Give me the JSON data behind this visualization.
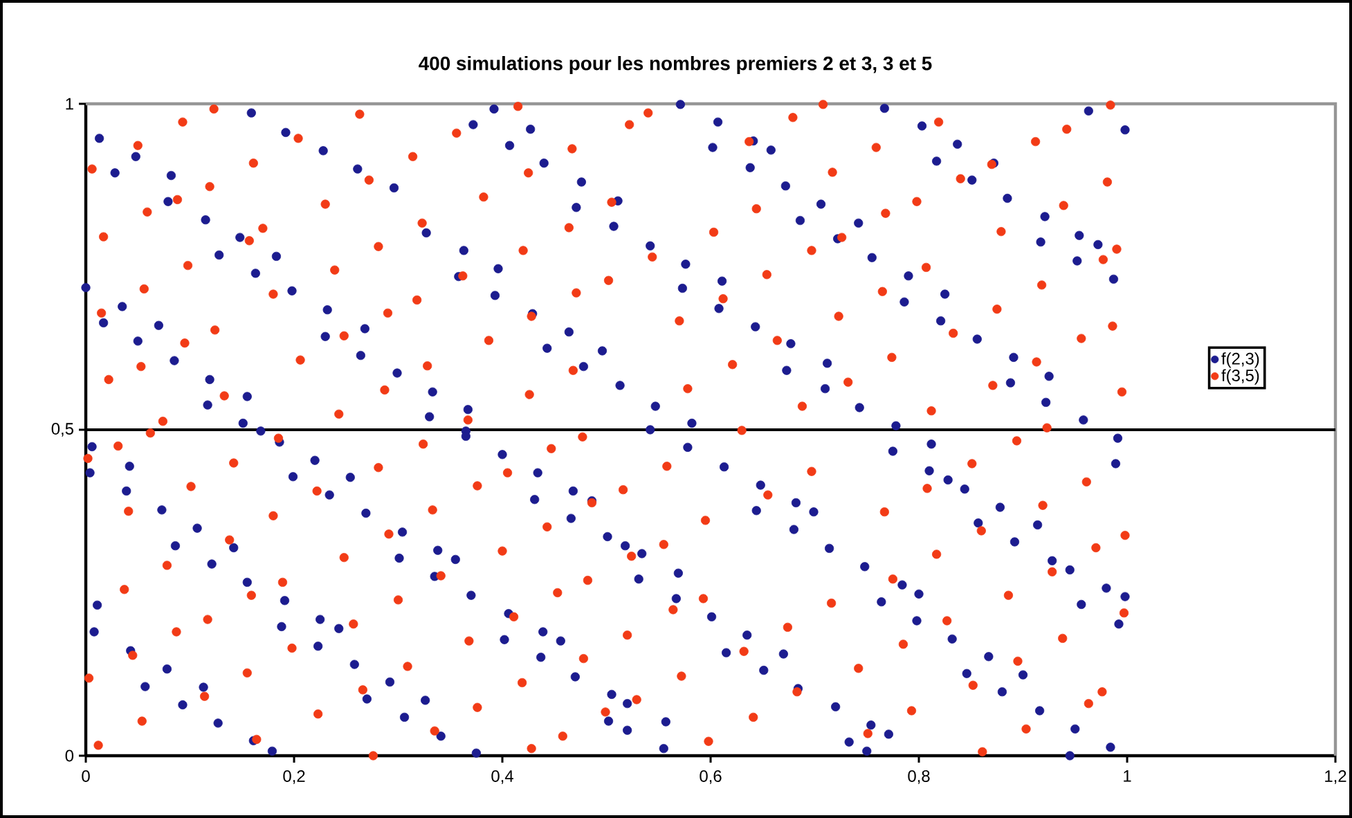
{
  "chart_data": {
    "type": "scatter",
    "title": "400 simulations pour les nombres premiers 2 et 3, 3 et 5",
    "xlim": [
      0,
      1.2
    ],
    "ylim": [
      0,
      1
    ],
    "xticks": [
      0,
      {
        "value": 0.2,
        "label": "0,2"
      },
      {
        "value": 0.4,
        "label": "0,4"
      },
      {
        "value": 0.6,
        "label": "0,6"
      },
      {
        "value": 0.8,
        "label": "0,8"
      },
      1,
      {
        "value": 1.2,
        "label": "1,2"
      }
    ],
    "yticks": [
      0,
      {
        "value": 0.5,
        "label": "0,5"
      },
      1
    ],
    "grid": false,
    "legend": "right",
    "marker": "circle",
    "ref_lines": [
      {
        "axis": "y",
        "value": 0.5,
        "color": "#000000"
      }
    ],
    "series": [
      {
        "name": "f(2,3)",
        "color": "#1c1c8f",
        "x": [
          0.013,
          0.048,
          0.082,
          0.028,
          0.079,
          0.115,
          0.148,
          0.183,
          0.159,
          0.192,
          0.228,
          0.261,
          0.296,
          0.0,
          0.035,
          0.07,
          0.017,
          0.05,
          0.085,
          0.119,
          0.155,
          0.128,
          0.163,
          0.198,
          0.232,
          0.268,
          0.23,
          0.264,
          0.299,
          0.333,
          0.367,
          0.117,
          0.151,
          0.168,
          0.33,
          0.365,
          0.327,
          0.363,
          0.396,
          0.372,
          0.407,
          0.44,
          0.476,
          0.511,
          0.392,
          0.427,
          0.358,
          0.393,
          0.429,
          0.464,
          0.496,
          0.513,
          0.443,
          0.478,
          0.471,
          0.507,
          0.571,
          0.607,
          0.641,
          0.658,
          0.602,
          0.638,
          0.672,
          0.706,
          0.742,
          0.542,
          0.576,
          0.611,
          0.573,
          0.608,
          0.643,
          0.677,
          0.712,
          0.686,
          0.722,
          0.755,
          0.79,
          0.825,
          0.786,
          0.821,
          0.856,
          0.891,
          0.925,
          0.673,
          0.71,
          0.743,
          0.778,
          0.547,
          0.582,
          0.767,
          0.803,
          0.837,
          0.872,
          0.817,
          0.851,
          0.885,
          0.921,
          0.954,
          0.972,
          0.917,
          0.952,
          0.987,
          0.888,
          0.922,
          0.958,
          0.963,
          0.998,
          0.006,
          0.042,
          0.004,
          0.039,
          0.073,
          0.107,
          0.142,
          0.086,
          0.121,
          0.155,
          0.191,
          0.225,
          0.243,
          0.186,
          0.22,
          0.254,
          0.199,
          0.234,
          0.269,
          0.304,
          0.338,
          0.355,
          0.011,
          0.008,
          0.043,
          0.078,
          0.113,
          0.057,
          0.093,
          0.127,
          0.161,
          0.179,
          0.188,
          0.223,
          0.258,
          0.292,
          0.326,
          0.27,
          0.306,
          0.341,
          0.375,
          0.301,
          0.335,
          0.37,
          0.406,
          0.439,
          0.456,
          0.402,
          0.437,
          0.47,
          0.505,
          0.365,
          0.4,
          0.434,
          0.468,
          0.486,
          0.431,
          0.466,
          0.501,
          0.518,
          0.502,
          0.542,
          0.578,
          0.613,
          0.648,
          0.682,
          0.699,
          0.534,
          0.569,
          0.531,
          0.567,
          0.601,
          0.635,
          0.67,
          0.644,
          0.68,
          0.714,
          0.748,
          0.784,
          0.8,
          0.775,
          0.81,
          0.828,
          0.812,
          0.764,
          0.798,
          0.832,
          0.867,
          0.9,
          0.846,
          0.88,
          0.916,
          0.95,
          0.984,
          0.52,
          0.557,
          0.52,
          0.555,
          0.615,
          0.651,
          0.684,
          0.72,
          0.754,
          0.771,
          0.733,
          0.75,
          0.844,
          0.878,
          0.914,
          0.857,
          0.892,
          0.928,
          0.945,
          0.98,
          0.998,
          0.956,
          0.992,
          0.945,
          0.991,
          0.989
        ],
        "values": [
          0.947,
          0.919,
          0.89,
          0.894,
          0.85,
          0.822,
          0.795,
          0.766,
          0.986,
          0.956,
          0.928,
          0.9,
          0.871,
          0.718,
          0.689,
          0.66,
          0.664,
          0.636,
          0.606,
          0.577,
          0.551,
          0.768,
          0.74,
          0.713,
          0.684,
          0.655,
          0.643,
          0.614,
          0.587,
          0.558,
          0.531,
          0.538,
          0.51,
          0.498,
          0.52,
          0.498,
          0.802,
          0.775,
          0.747,
          0.968,
          0.936,
          0.909,
          0.88,
          0.851,
          0.992,
          0.961,
          0.735,
          0.706,
          0.678,
          0.65,
          0.621,
          0.568,
          0.625,
          0.597,
          0.841,
          0.812,
          0.999,
          0.972,
          0.943,
          0.929,
          0.933,
          0.902,
          0.874,
          0.846,
          0.817,
          0.782,
          0.754,
          0.728,
          0.717,
          0.686,
          0.658,
          0.632,
          0.602,
          0.821,
          0.793,
          0.764,
          0.736,
          0.708,
          0.696,
          0.667,
          0.639,
          0.611,
          0.582,
          0.591,
          0.563,
          0.534,
          0.506,
          0.536,
          0.51,
          0.993,
          0.966,
          0.938,
          0.909,
          0.912,
          0.883,
          0.855,
          0.827,
          0.798,
          0.784,
          0.788,
          0.759,
          0.731,
          0.572,
          0.542,
          0.515,
          0.989,
          0.96,
          0.474,
          0.444,
          0.434,
          0.406,
          0.377,
          0.349,
          0.319,
          0.322,
          0.294,
          0.266,
          0.238,
          0.209,
          0.195,
          0.481,
          0.453,
          0.427,
          0.428,
          0.4,
          0.372,
          0.343,
          0.315,
          0.301,
          0.231,
          0.19,
          0.161,
          0.133,
          0.105,
          0.106,
          0.078,
          0.05,
          0.023,
          0.007,
          0.198,
          0.168,
          0.14,
          0.113,
          0.085,
          0.087,
          0.059,
          0.03,
          0.004,
          0.303,
          0.275,
          0.246,
          0.218,
          0.19,
          0.176,
          0.178,
          0.151,
          0.121,
          0.094,
          0.49,
          0.462,
          0.434,
          0.406,
          0.391,
          0.393,
          0.364,
          0.336,
          0.322,
          0.053,
          0.5,
          0.473,
          0.443,
          0.415,
          0.388,
          0.374,
          0.31,
          0.28,
          0.271,
          0.241,
          0.213,
          0.185,
          0.156,
          0.376,
          0.347,
          0.318,
          0.29,
          0.262,
          0.248,
          0.467,
          0.437,
          0.423,
          0.478,
          0.236,
          0.207,
          0.179,
          0.152,
          0.124,
          0.126,
          0.098,
          0.069,
          0.041,
          0.013,
          0.08,
          0.052,
          0.039,
          0.011,
          0.158,
          0.131,
          0.103,
          0.075,
          0.047,
          0.033,
          0.021,
          0.007,
          0.409,
          0.381,
          0.354,
          0.357,
          0.328,
          0.299,
          0.285,
          0.257,
          0.244,
          0.232,
          0.202,
          0.0,
          0.487,
          0.448
        ]
      },
      {
        "name": "f(3,5)",
        "color": "#f23b16",
        "x": [
          0.006,
          0.05,
          0.093,
          0.123,
          0.017,
          0.059,
          0.088,
          0.015,
          0.022,
          0.053,
          0.095,
          0.124,
          0.056,
          0.098,
          0.157,
          0.17,
          0.119,
          0.161,
          0.204,
          0.263,
          0.074,
          0.133,
          0.18,
          0.239,
          0.281,
          0.206,
          0.248,
          0.29,
          0.318,
          0.23,
          0.272,
          0.314,
          0.356,
          0.415,
          0.243,
          0.287,
          0.328,
          0.387,
          0.428,
          0.471,
          0.502,
          0.323,
          0.382,
          0.425,
          0.467,
          0.522,
          0.362,
          0.42,
          0.464,
          0.505,
          0.367,
          0.426,
          0.468,
          0.54,
          0.544,
          0.603,
          0.644,
          0.57,
          0.612,
          0.654,
          0.697,
          0.726,
          0.578,
          0.621,
          0.664,
          0.723,
          0.765,
          0.807,
          0.688,
          0.732,
          0.774,
          0.833,
          0.875,
          0.637,
          0.679,
          0.708,
          0.717,
          0.759,
          0.819,
          0.768,
          0.798,
          0.84,
          0.87,
          0.879,
          0.939,
          0.981,
          0.912,
          0.942,
          0.984,
          0.812,
          0.871,
          0.913,
          0.918,
          0.977,
          0.99,
          0.956,
          0.986,
          0.995,
          0.002,
          0.031,
          0.062,
          0.041,
          0.101,
          0.142,
          0.185,
          0.003,
          0.045,
          0.087,
          0.117,
          0.159,
          0.189,
          0.037,
          0.078,
          0.138,
          0.18,
          0.222,
          0.281,
          0.324,
          0.012,
          0.054,
          0.114,
          0.155,
          0.198,
          0.257,
          0.3,
          0.164,
          0.223,
          0.266,
          0.309,
          0.368,
          0.411,
          0.453,
          0.482,
          0.248,
          0.291,
          0.333,
          0.376,
          0.405,
          0.447,
          0.477,
          0.276,
          0.335,
          0.376,
          0.419,
          0.478,
          0.341,
          0.4,
          0.443,
          0.486,
          0.428,
          0.458,
          0.499,
          0.516,
          0.558,
          0.524,
          0.555,
          0.52,
          0.564,
          0.593,
          0.595,
          0.655,
          0.697,
          0.572,
          0.632,
          0.674,
          0.716,
          0.775,
          0.817,
          0.529,
          0.598,
          0.641,
          0.683,
          0.742,
          0.785,
          0.827,
          0.886,
          0.928,
          0.97,
          0.998,
          0.63,
          0.767,
          0.808,
          0.851,
          0.894,
          0.923,
          0.751,
          0.793,
          0.852,
          0.895,
          0.938,
          0.997,
          0.861,
          0.903,
          0.963,
          0.976,
          0.86,
          0.919,
          0.961
        ],
        "values": [
          0.9,
          0.936,
          0.972,
          0.992,
          0.796,
          0.834,
          0.853,
          0.679,
          0.577,
          0.597,
          0.633,
          0.653,
          0.716,
          0.752,
          0.79,
          0.809,
          0.873,
          0.909,
          0.947,
          0.984,
          0.513,
          0.552,
          0.708,
          0.745,
          0.781,
          0.607,
          0.644,
          0.679,
          0.699,
          0.846,
          0.883,
          0.919,
          0.955,
          0.996,
          0.524,
          0.561,
          0.598,
          0.637,
          0.674,
          0.71,
          0.729,
          0.817,
          0.857,
          0.894,
          0.931,
          0.968,
          0.736,
          0.775,
          0.81,
          0.849,
          0.515,
          0.554,
          0.591,
          0.986,
          0.765,
          0.803,
          0.839,
          0.667,
          0.701,
          0.738,
          0.775,
          0.795,
          0.563,
          0.6,
          0.637,
          0.674,
          0.712,
          0.749,
          0.536,
          0.573,
          0.611,
          0.648,
          0.685,
          0.942,
          0.979,
          0.999,
          0.895,
          0.933,
          0.972,
          0.832,
          0.85,
          0.885,
          0.907,
          0.804,
          0.844,
          0.88,
          0.942,
          0.961,
          0.998,
          0.529,
          0.568,
          0.604,
          0.722,
          0.761,
          0.777,
          0.64,
          0.659,
          0.558,
          0.456,
          0.475,
          0.495,
          0.375,
          0.413,
          0.449,
          0.487,
          0.119,
          0.154,
          0.19,
          0.209,
          0.246,
          0.266,
          0.255,
          0.292,
          0.331,
          0.368,
          0.406,
          0.442,
          0.478,
          0.016,
          0.053,
          0.091,
          0.127,
          0.165,
          0.202,
          0.239,
          0.025,
          0.064,
          0.101,
          0.137,
          0.176,
          0.213,
          0.25,
          0.269,
          0.304,
          0.34,
          0.377,
          0.414,
          0.434,
          0.471,
          0.489,
          0.0,
          0.038,
          0.074,
          0.112,
          0.149,
          0.276,
          0.314,
          0.351,
          0.388,
          0.011,
          0.03,
          0.067,
          0.408,
          0.444,
          0.306,
          0.324,
          0.185,
          0.224,
          0.241,
          0.361,
          0.4,
          0.436,
          0.122,
          0.16,
          0.197,
          0.234,
          0.271,
          0.309,
          0.086,
          0.022,
          0.059,
          0.098,
          0.134,
          0.171,
          0.207,
          0.246,
          0.282,
          0.319,
          0.338,
          0.499,
          0.374,
          0.41,
          0.448,
          0.483,
          0.503,
          0.034,
          0.069,
          0.108,
          0.145,
          0.18,
          0.219,
          0.006,
          0.041,
          0.08,
          0.098,
          0.345,
          0.384,
          0.42
        ]
      }
    ]
  }
}
